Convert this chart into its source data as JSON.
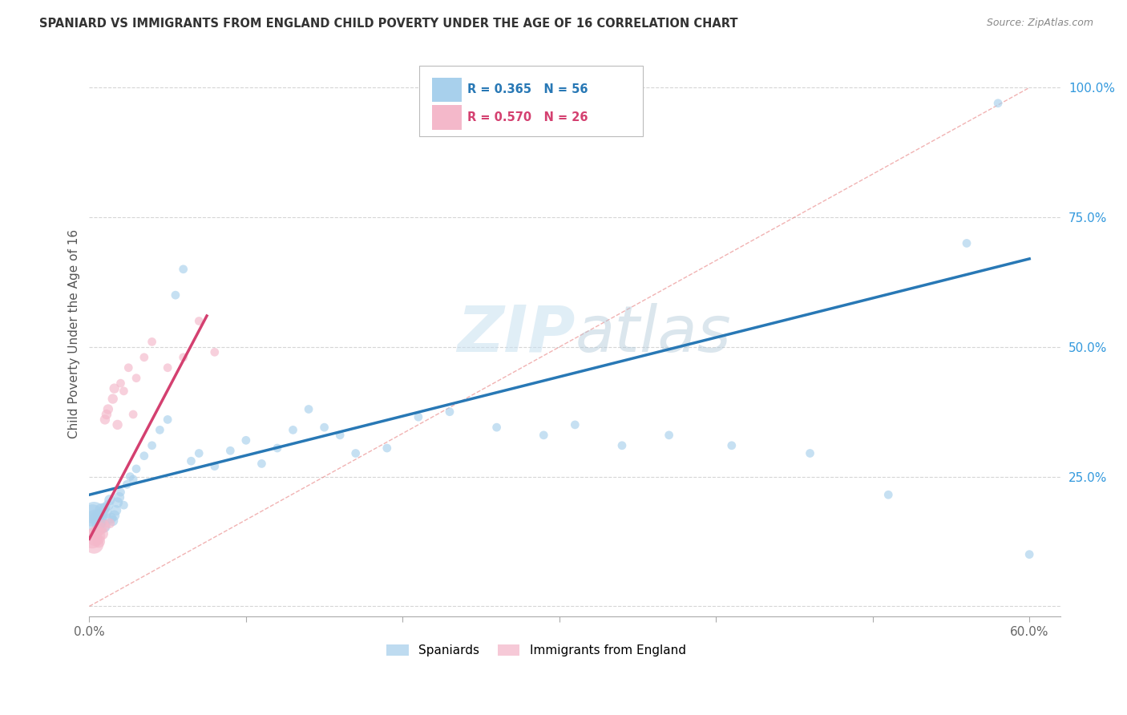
{
  "title": "SPANIARD VS IMMIGRANTS FROM ENGLAND CHILD POVERTY UNDER THE AGE OF 16 CORRELATION CHART",
  "source": "Source: ZipAtlas.com",
  "ylabel": "Child Poverty Under the Age of 16",
  "xlim": [
    0.0,
    0.62
  ],
  "ylim": [
    -0.02,
    1.07
  ],
  "xticks": [
    0.0,
    0.1,
    0.2,
    0.3,
    0.4,
    0.5,
    0.6
  ],
  "xticklabels": [
    "0.0%",
    "",
    "",
    "",
    "",
    "",
    "60.0%"
  ],
  "yticks": [
    0.0,
    0.25,
    0.5,
    0.75,
    1.0
  ],
  "yticklabels": [
    "",
    "25.0%",
    "50.0%",
    "75.0%",
    "100.0%"
  ],
  "legend_blue_r": "R = 0.365",
  "legend_blue_n": "N = 56",
  "legend_pink_r": "R = 0.570",
  "legend_pink_n": "N = 26",
  "legend_blue_label": "Spaniards",
  "legend_pink_label": "Immigrants from England",
  "blue_color": "#a8d0ec",
  "pink_color": "#f4b8ca",
  "blue_line_color": "#2878b5",
  "pink_line_color": "#d44070",
  "diag_line_color": "#e88080",
  "watermark_color": "#c8e0f0",
  "blue_scatter_x": [
    0.002,
    0.003,
    0.004,
    0.005,
    0.006,
    0.007,
    0.008,
    0.009,
    0.01,
    0.011,
    0.012,
    0.013,
    0.014,
    0.015,
    0.016,
    0.017,
    0.018,
    0.019,
    0.02,
    0.022,
    0.024,
    0.026,
    0.028,
    0.03,
    0.035,
    0.04,
    0.045,
    0.05,
    0.055,
    0.06,
    0.065,
    0.07,
    0.08,
    0.09,
    0.1,
    0.11,
    0.12,
    0.13,
    0.14,
    0.15,
    0.16,
    0.17,
    0.19,
    0.21,
    0.23,
    0.26,
    0.29,
    0.31,
    0.34,
    0.37,
    0.41,
    0.46,
    0.51,
    0.56,
    0.58,
    0.6
  ],
  "blue_scatter_y": [
    0.175,
    0.18,
    0.165,
    0.17,
    0.16,
    0.175,
    0.185,
    0.155,
    0.19,
    0.18,
    0.195,
    0.205,
    0.17,
    0.165,
    0.175,
    0.185,
    0.2,
    0.21,
    0.22,
    0.195,
    0.235,
    0.25,
    0.245,
    0.265,
    0.29,
    0.31,
    0.34,
    0.36,
    0.6,
    0.65,
    0.28,
    0.295,
    0.27,
    0.3,
    0.32,
    0.275,
    0.305,
    0.34,
    0.38,
    0.345,
    0.33,
    0.295,
    0.305,
    0.365,
    0.375,
    0.345,
    0.33,
    0.35,
    0.31,
    0.33,
    0.31,
    0.295,
    0.215,
    0.7,
    0.97,
    0.1
  ],
  "pink_scatter_x": [
    0.002,
    0.003,
    0.004,
    0.005,
    0.006,
    0.007,
    0.008,
    0.009,
    0.01,
    0.011,
    0.012,
    0.013,
    0.015,
    0.016,
    0.018,
    0.02,
    0.022,
    0.025,
    0.028,
    0.03,
    0.035,
    0.04,
    0.05,
    0.06,
    0.07,
    0.08
  ],
  "pink_scatter_y": [
    0.13,
    0.12,
    0.135,
    0.145,
    0.125,
    0.15,
    0.14,
    0.155,
    0.36,
    0.37,
    0.38,
    0.16,
    0.4,
    0.42,
    0.35,
    0.43,
    0.415,
    0.46,
    0.37,
    0.44,
    0.48,
    0.51,
    0.46,
    0.48,
    0.55,
    0.49
  ],
  "blue_line_x": [
    0.0,
    0.6
  ],
  "blue_line_y": [
    0.215,
    0.67
  ],
  "pink_line_x": [
    0.0,
    0.075
  ],
  "pink_line_y": [
    0.13,
    0.56
  ],
  "diag_line_x": [
    0.0,
    0.6
  ],
  "diag_line_y": [
    0.0,
    1.0
  ]
}
